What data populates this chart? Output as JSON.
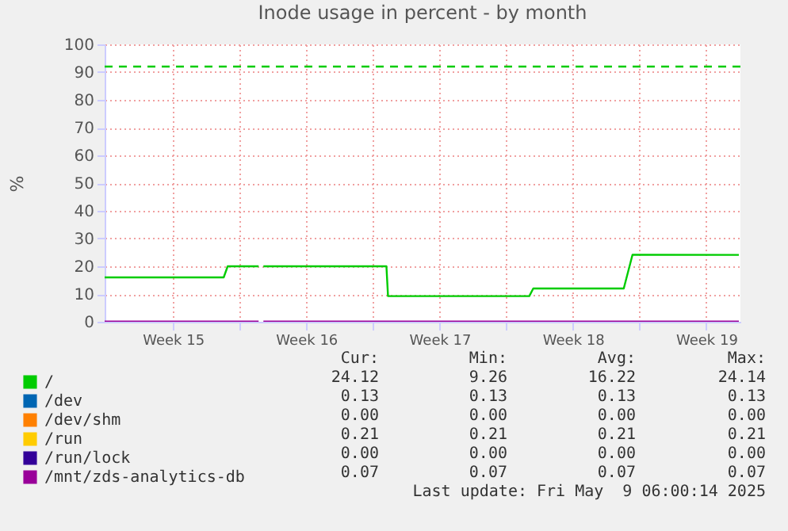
{
  "chart_data": {
    "type": "line",
    "title": "Inode usage in percent - by month",
    "ylabel": "%",
    "x": [
      "2025-04-06T22:00",
      "2025-04-13T04:00",
      "2025-04-13T09:00",
      "2025-04-15T00:00",
      "2025-04-15T03:00",
      "2025-04-15T06:00",
      "2025-04-21T17:00",
      "2025-04-21T19:00",
      "2025-04-29T05:00",
      "2025-04-29T10:00",
      "2025-05-04T04:00",
      "2025-05-04T15:00",
      "2025-05-10T05:00"
    ],
    "xlim": [
      "2025-04-06T22:00",
      "2025-05-10T07:00"
    ],
    "xticks": [
      {
        "value": "2025-04-10T12:00",
        "label": "Week 15"
      },
      {
        "value": "2025-04-14",
        "label": null
      },
      {
        "value": "2025-04-17T12:00",
        "label": "Week 16"
      },
      {
        "value": "2025-04-21",
        "label": null
      },
      {
        "value": "2025-04-24T12:00",
        "label": "Week 17"
      },
      {
        "value": "2025-04-28",
        "label": null
      },
      {
        "value": "2025-05-01T12:00",
        "label": "Week 18"
      },
      {
        "value": "2025-05-05",
        "label": null
      },
      {
        "value": "2025-05-08T12:00",
        "label": "Week 19"
      }
    ],
    "ylim": [
      0,
      100
    ],
    "yticks": [
      0,
      10,
      20,
      30,
      40,
      50,
      60,
      70,
      80,
      90,
      100
    ],
    "grid": true,
    "legend": "bottom",
    "ref_lines": [
      {
        "axis": "y",
        "value": 92,
        "color": "#00cc00",
        "line_style": "dashed"
      }
    ],
    "series": [
      {
        "name": "/",
        "color": "#00cc00",
        "values": [
          16,
          16,
          20,
          20,
          null,
          20,
          20,
          9.26,
          9.26,
          12,
          12,
          24.14,
          24.12
        ]
      },
      {
        "name": "/dev",
        "color": "#0066b3",
        "values": [
          null,
          null,
          null,
          null,
          null,
          null,
          null,
          null,
          null,
          null,
          null,
          null,
          null
        ]
      },
      {
        "name": "/dev/shm",
        "color": "#ff8000",
        "values": [
          null,
          null,
          null,
          null,
          null,
          null,
          null,
          null,
          null,
          null,
          null,
          null,
          null
        ]
      },
      {
        "name": "/run",
        "color": "#ffcc00",
        "values": [
          null,
          null,
          null,
          null,
          null,
          null,
          null,
          null,
          null,
          null,
          null,
          null,
          null
        ]
      },
      {
        "name": "/run/lock",
        "color": "#330099",
        "values": [
          null,
          null,
          null,
          null,
          null,
          null,
          null,
          null,
          null,
          null,
          null,
          null,
          null
        ]
      },
      {
        "name": "/mnt/zds-analytics-db",
        "color": "#990099",
        "values": [
          0.07,
          0.07,
          0.07,
          0.07,
          null,
          0.07,
          0.07,
          0.07,
          0.07,
          0.07,
          0.07,
          0.07,
          0.07
        ]
      }
    ],
    "annotations": [
      "Cur:",
      "Min:",
      "Avg:",
      "Max:",
      "24.12",
      "9.26",
      "16.22",
      "24.14",
      "0.13",
      "0.13",
      "0.13",
      "0.13",
      "0.00",
      "0.00",
      "0.00",
      "0.00",
      "0.21",
      "0.21",
      "0.21",
      "0.21",
      "0.00",
      "0.00",
      "0.00",
      "0.00",
      "0.07",
      "0.07",
      "0.07",
      "0.07",
      "Last update: Fri May  9 06:00:14 2025"
    ]
  }
}
